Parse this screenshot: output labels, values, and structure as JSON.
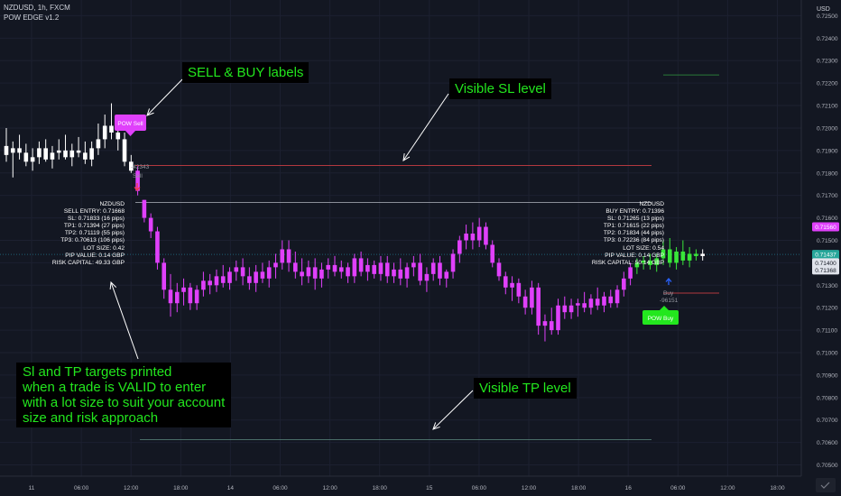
{
  "header": {
    "symbol_line": "NZDUSD, 1h, FXCM",
    "indicator": "POW EDGE v1.2"
  },
  "price_axis": {
    "currency": "USD",
    "ticks": [
      "0.72500",
      "0.72400",
      "0.72300",
      "0.72200",
      "0.72100",
      "0.72000",
      "0.71900",
      "0.71800",
      "0.71700",
      "0.71600",
      "0.71500",
      "0.71400",
      "0.71300",
      "0.71200",
      "0.71100",
      "0.71000",
      "0.70900",
      "0.70800",
      "0.70700",
      "0.70600",
      "0.70500"
    ],
    "badges": [
      {
        "text": "0.71560",
        "value": 0.7156,
        "bg": "#e040fb",
        "fg": "#ffffff"
      },
      {
        "text": "0.71437",
        "value": 0.71437,
        "bg": "#26a69a",
        "fg": "#ffffff"
      },
      {
        "text": "0.71400",
        "value": 0.714,
        "bg": "#e0e3eb",
        "fg": "#131722"
      },
      {
        "text": "0.71368",
        "value": 0.71368,
        "bg": "#e0e3eb",
        "fg": "#131722"
      }
    ]
  },
  "time_axis": {
    "ticks": [
      "11",
      "06:00",
      "12:00",
      "18:00",
      "14",
      "06:00",
      "12:00",
      "18:00",
      "15",
      "06:00",
      "12:00",
      "18:00",
      "16",
      "06:00",
      "12:00",
      "18:00"
    ]
  },
  "annotations": {
    "sell_buy": "SELL & BUY labels",
    "sl": "Visible SL level",
    "tp": "Visible TP level",
    "targets": "Sl and TP targets printed\nwhen a trade is VALID to enter\nwith a lot size to suit your account\nsize and risk approach"
  },
  "sell_info": [
    "NZDUSD",
    "SELL ENTRY: 0.71668",
    "SL: 0.71833 (16 pips)",
    "TP1: 0.71394 (27 pips)",
    "TP2: 0.71119 (55 pips)",
    "TP3: 0.70613 (106 pips)",
    "LOT SIZE: 0.42",
    "PIP VALUE: 0.14 GBP",
    "RISK CAPITAL: 49.33 GBP"
  ],
  "buy_info": [
    "NZDUSD",
    "BUY ENTRY: 0.71396",
    "SL: 0.71265 (13 pips)",
    "TP1: 0.71615 (22 pips)",
    "TP2: 0.71834 (44 pips)",
    "TP3: 0.72236 (84 pips)",
    "LOT SIZE: 0.54",
    "PIP VALUE: 0.14 GBP",
    "RISK CAPITAL: 50.14 GBP"
  ],
  "signals": {
    "sell_label": "POW Sell",
    "buy_label": "POW Buy",
    "sell_tag_id": "-42343",
    "sell_tag": "Sell",
    "buy_tag": "Buy",
    "buy_tag_id": "-96151"
  },
  "colors": {
    "background": "#131722",
    "bear_candle": "#e040fb",
    "neutral_candle": "#ffffff",
    "bull_candle": "#39e639",
    "annotation_text": "#23e71e",
    "sl_line": "#b2383f"
  },
  "chart_data": {
    "type": "candlestick",
    "ylim": [
      0.7045,
      0.7257
    ],
    "levels": [
      {
        "name": "sell_sl",
        "value": 0.71833
      },
      {
        "name": "sell_entry",
        "value": 0.71668
      },
      {
        "name": "sell_tp3",
        "value": 0.70613
      },
      {
        "name": "buy_sl",
        "value": 0.71265
      },
      {
        "name": "buy_tp3",
        "value": 0.72236
      },
      {
        "name": "last_price",
        "value": 0.71437
      }
    ],
    "candles": [
      {
        "o": 0.7192,
        "h": 0.72,
        "l": 0.7185,
        "c": 0.7188,
        "k": "w"
      },
      {
        "o": 0.7189,
        "h": 0.7194,
        "l": 0.7178,
        "c": 0.7191,
        "k": "w"
      },
      {
        "o": 0.7191,
        "h": 0.7197,
        "l": 0.7186,
        "c": 0.7189,
        "k": "w"
      },
      {
        "o": 0.7189,
        "h": 0.7193,
        "l": 0.7183,
        "c": 0.7185,
        "k": "w"
      },
      {
        "o": 0.7185,
        "h": 0.7191,
        "l": 0.7181,
        "c": 0.7187,
        "k": "w"
      },
      {
        "o": 0.7187,
        "h": 0.7194,
        "l": 0.7184,
        "c": 0.7191,
        "k": "w"
      },
      {
        "o": 0.7191,
        "h": 0.7195,
        "l": 0.7185,
        "c": 0.7186,
        "k": "w"
      },
      {
        "o": 0.7186,
        "h": 0.7192,
        "l": 0.7182,
        "c": 0.7189,
        "k": "w"
      },
      {
        "o": 0.7189,
        "h": 0.7195,
        "l": 0.7186,
        "c": 0.719,
        "k": "w"
      },
      {
        "o": 0.719,
        "h": 0.7197,
        "l": 0.7186,
        "c": 0.7187,
        "k": "w"
      },
      {
        "o": 0.7187,
        "h": 0.7193,
        "l": 0.7183,
        "c": 0.719,
        "k": "w"
      },
      {
        "o": 0.719,
        "h": 0.7196,
        "l": 0.7187,
        "c": 0.7189,
        "k": "w"
      },
      {
        "o": 0.7189,
        "h": 0.7194,
        "l": 0.7184,
        "c": 0.7186,
        "k": "w"
      },
      {
        "o": 0.7186,
        "h": 0.7194,
        "l": 0.7183,
        "c": 0.7191,
        "k": "w"
      },
      {
        "o": 0.7191,
        "h": 0.7202,
        "l": 0.7188,
        "c": 0.7195,
        "k": "w"
      },
      {
        "o": 0.7195,
        "h": 0.7206,
        "l": 0.7191,
        "c": 0.7201,
        "k": "w"
      },
      {
        "o": 0.7201,
        "h": 0.7211,
        "l": 0.7195,
        "c": 0.7198,
        "k": "w"
      },
      {
        "o": 0.7198,
        "h": 0.7201,
        "l": 0.719,
        "c": 0.7195,
        "k": "w"
      },
      {
        "o": 0.7195,
        "h": 0.7198,
        "l": 0.7183,
        "c": 0.7185,
        "k": "w"
      },
      {
        "o": 0.7185,
        "h": 0.7188,
        "l": 0.718,
        "c": 0.7181,
        "k": "w"
      },
      {
        "o": 0.7181,
        "h": 0.7183,
        "l": 0.717,
        "c": 0.7172,
        "k": "p"
      },
      {
        "o": 0.7168,
        "h": 0.7168,
        "l": 0.7158,
        "c": 0.716,
        "k": "p"
      },
      {
        "o": 0.716,
        "h": 0.7162,
        "l": 0.7151,
        "c": 0.7154,
        "k": "p"
      },
      {
        "o": 0.7154,
        "h": 0.7156,
        "l": 0.7137,
        "c": 0.714,
        "k": "p"
      },
      {
        "o": 0.714,
        "h": 0.7142,
        "l": 0.7124,
        "c": 0.7128,
        "k": "p"
      },
      {
        "o": 0.7128,
        "h": 0.7135,
        "l": 0.7116,
        "c": 0.7122,
        "k": "p"
      },
      {
        "o": 0.7122,
        "h": 0.7131,
        "l": 0.7118,
        "c": 0.7127,
        "k": "p"
      },
      {
        "o": 0.7127,
        "h": 0.7133,
        "l": 0.7121,
        "c": 0.7129,
        "k": "p"
      },
      {
        "o": 0.7129,
        "h": 0.7131,
        "l": 0.7119,
        "c": 0.7122,
        "k": "p"
      },
      {
        "o": 0.7122,
        "h": 0.713,
        "l": 0.7119,
        "c": 0.7128,
        "k": "p"
      },
      {
        "o": 0.7128,
        "h": 0.7136,
        "l": 0.7125,
        "c": 0.7132,
        "k": "p"
      },
      {
        "o": 0.7132,
        "h": 0.7135,
        "l": 0.7126,
        "c": 0.713,
        "k": "p"
      },
      {
        "o": 0.713,
        "h": 0.7137,
        "l": 0.7127,
        "c": 0.7134,
        "k": "p"
      },
      {
        "o": 0.7134,
        "h": 0.7139,
        "l": 0.7129,
        "c": 0.7131,
        "k": "p"
      },
      {
        "o": 0.7131,
        "h": 0.7138,
        "l": 0.7128,
        "c": 0.7136,
        "k": "p"
      },
      {
        "o": 0.7136,
        "h": 0.7141,
        "l": 0.7132,
        "c": 0.7138,
        "k": "p"
      },
      {
        "o": 0.7138,
        "h": 0.7142,
        "l": 0.713,
        "c": 0.7134,
        "k": "p"
      },
      {
        "o": 0.7134,
        "h": 0.7138,
        "l": 0.7128,
        "c": 0.7131,
        "k": "p"
      },
      {
        "o": 0.7131,
        "h": 0.7139,
        "l": 0.7127,
        "c": 0.7136,
        "k": "p"
      },
      {
        "o": 0.7136,
        "h": 0.714,
        "l": 0.7131,
        "c": 0.7133,
        "k": "p"
      },
      {
        "o": 0.7133,
        "h": 0.7141,
        "l": 0.7129,
        "c": 0.7138,
        "k": "p"
      },
      {
        "o": 0.7138,
        "h": 0.7144,
        "l": 0.7133,
        "c": 0.714,
        "k": "p"
      },
      {
        "o": 0.714,
        "h": 0.715,
        "l": 0.7137,
        "c": 0.7146,
        "k": "p"
      },
      {
        "o": 0.7146,
        "h": 0.715,
        "l": 0.7136,
        "c": 0.714,
        "k": "p"
      },
      {
        "o": 0.714,
        "h": 0.7145,
        "l": 0.7133,
        "c": 0.7136,
        "k": "p"
      },
      {
        "o": 0.7136,
        "h": 0.7142,
        "l": 0.713,
        "c": 0.7134,
        "k": "p"
      },
      {
        "o": 0.7134,
        "h": 0.7141,
        "l": 0.7131,
        "c": 0.7138,
        "k": "p"
      },
      {
        "o": 0.7138,
        "h": 0.7142,
        "l": 0.7128,
        "c": 0.7133,
        "k": "p"
      },
      {
        "o": 0.7133,
        "h": 0.714,
        "l": 0.7129,
        "c": 0.7137,
        "k": "p"
      },
      {
        "o": 0.7137,
        "h": 0.7142,
        "l": 0.7133,
        "c": 0.7139,
        "k": "p"
      },
      {
        "o": 0.7139,
        "h": 0.7143,
        "l": 0.7134,
        "c": 0.7136,
        "k": "p"
      },
      {
        "o": 0.7136,
        "h": 0.7141,
        "l": 0.7133,
        "c": 0.7138,
        "k": "p"
      },
      {
        "o": 0.7138,
        "h": 0.714,
        "l": 0.7131,
        "c": 0.7134,
        "k": "p"
      },
      {
        "o": 0.7134,
        "h": 0.7144,
        "l": 0.7131,
        "c": 0.7142,
        "k": "p"
      },
      {
        "o": 0.7142,
        "h": 0.7145,
        "l": 0.7134,
        "c": 0.7136,
        "k": "p"
      },
      {
        "o": 0.7136,
        "h": 0.7142,
        "l": 0.7132,
        "c": 0.7139,
        "k": "p"
      },
      {
        "o": 0.7139,
        "h": 0.7141,
        "l": 0.7133,
        "c": 0.7135,
        "k": "p"
      },
      {
        "o": 0.7135,
        "h": 0.7143,
        "l": 0.7132,
        "c": 0.714,
        "k": "p"
      },
      {
        "o": 0.714,
        "h": 0.7143,
        "l": 0.7131,
        "c": 0.7134,
        "k": "p"
      },
      {
        "o": 0.7134,
        "h": 0.714,
        "l": 0.7131,
        "c": 0.7137,
        "k": "p"
      },
      {
        "o": 0.7137,
        "h": 0.7142,
        "l": 0.713,
        "c": 0.7133,
        "k": "p"
      },
      {
        "o": 0.7133,
        "h": 0.714,
        "l": 0.7129,
        "c": 0.7138,
        "k": "p"
      },
      {
        "o": 0.7138,
        "h": 0.7143,
        "l": 0.7134,
        "c": 0.714,
        "k": "p"
      },
      {
        "o": 0.714,
        "h": 0.7144,
        "l": 0.713,
        "c": 0.7132,
        "k": "p"
      },
      {
        "o": 0.7132,
        "h": 0.7138,
        "l": 0.7127,
        "c": 0.7135,
        "k": "p"
      },
      {
        "o": 0.7135,
        "h": 0.7142,
        "l": 0.7132,
        "c": 0.714,
        "k": "p"
      },
      {
        "o": 0.714,
        "h": 0.7143,
        "l": 0.713,
        "c": 0.7133,
        "k": "p"
      },
      {
        "o": 0.7133,
        "h": 0.7137,
        "l": 0.7129,
        "c": 0.7136,
        "k": "p"
      },
      {
        "o": 0.7136,
        "h": 0.7146,
        "l": 0.7133,
        "c": 0.7144,
        "k": "p"
      },
      {
        "o": 0.7144,
        "h": 0.7152,
        "l": 0.714,
        "c": 0.715,
        "k": "p"
      },
      {
        "o": 0.715,
        "h": 0.7157,
        "l": 0.7146,
        "c": 0.7153,
        "k": "p"
      },
      {
        "o": 0.7153,
        "h": 0.7158,
        "l": 0.7146,
        "c": 0.715,
        "k": "p"
      },
      {
        "o": 0.715,
        "h": 0.716,
        "l": 0.7147,
        "c": 0.7156,
        "k": "p"
      },
      {
        "o": 0.7156,
        "h": 0.7158,
        "l": 0.7146,
        "c": 0.7148,
        "k": "p"
      },
      {
        "o": 0.7148,
        "h": 0.715,
        "l": 0.7138,
        "c": 0.714,
        "k": "p"
      },
      {
        "o": 0.714,
        "h": 0.7142,
        "l": 0.7132,
        "c": 0.7134,
        "k": "p"
      },
      {
        "o": 0.7134,
        "h": 0.7136,
        "l": 0.7126,
        "c": 0.7129,
        "k": "p"
      },
      {
        "o": 0.7129,
        "h": 0.7134,
        "l": 0.7123,
        "c": 0.7131,
        "k": "p"
      },
      {
        "o": 0.7131,
        "h": 0.7133,
        "l": 0.7122,
        "c": 0.7125,
        "k": "p"
      },
      {
        "o": 0.7125,
        "h": 0.7128,
        "l": 0.7117,
        "c": 0.712,
        "k": "p"
      },
      {
        "o": 0.712,
        "h": 0.7132,
        "l": 0.7117,
        "c": 0.7129,
        "k": "p"
      },
      {
        "o": 0.7129,
        "h": 0.7131,
        "l": 0.7108,
        "c": 0.7112,
        "k": "p"
      },
      {
        "o": 0.7112,
        "h": 0.7117,
        "l": 0.7105,
        "c": 0.7114,
        "k": "p"
      },
      {
        "o": 0.7114,
        "h": 0.712,
        "l": 0.7108,
        "c": 0.711,
        "k": "p"
      },
      {
        "o": 0.711,
        "h": 0.7124,
        "l": 0.7108,
        "c": 0.7121,
        "k": "p"
      },
      {
        "o": 0.7121,
        "h": 0.7125,
        "l": 0.7115,
        "c": 0.7118,
        "k": "p"
      },
      {
        "o": 0.7118,
        "h": 0.7124,
        "l": 0.7115,
        "c": 0.7121,
        "k": "p"
      },
      {
        "o": 0.7121,
        "h": 0.7124,
        "l": 0.7116,
        "c": 0.7122,
        "k": "p"
      },
      {
        "o": 0.7122,
        "h": 0.7127,
        "l": 0.7118,
        "c": 0.712,
        "k": "p"
      },
      {
        "o": 0.712,
        "h": 0.7126,
        "l": 0.7117,
        "c": 0.7124,
        "k": "p"
      },
      {
        "o": 0.7124,
        "h": 0.7129,
        "l": 0.7119,
        "c": 0.7121,
        "k": "p"
      },
      {
        "o": 0.7121,
        "h": 0.7127,
        "l": 0.7118,
        "c": 0.7125,
        "k": "p"
      },
      {
        "o": 0.7125,
        "h": 0.7128,
        "l": 0.712,
        "c": 0.7122,
        "k": "p"
      },
      {
        "o": 0.7122,
        "h": 0.713,
        "l": 0.712,
        "c": 0.7128,
        "k": "p"
      },
      {
        "o": 0.7128,
        "h": 0.7136,
        "l": 0.7125,
        "c": 0.7133,
        "k": "p"
      },
      {
        "o": 0.7133,
        "h": 0.714,
        "l": 0.713,
        "c": 0.7138,
        "k": "p"
      },
      {
        "o": 0.7138,
        "h": 0.7142,
        "l": 0.7135,
        "c": 0.714,
        "k": "g"
      },
      {
        "o": 0.714,
        "h": 0.7143,
        "l": 0.7137,
        "c": 0.7141,
        "k": "g"
      },
      {
        "o": 0.7141,
        "h": 0.7144,
        "l": 0.7137,
        "c": 0.7139,
        "k": "g"
      },
      {
        "o": 0.7139,
        "h": 0.7144,
        "l": 0.7136,
        "c": 0.7142,
        "k": "g"
      },
      {
        "o": 0.7142,
        "h": 0.715,
        "l": 0.7139,
        "c": 0.7146,
        "k": "g"
      },
      {
        "o": 0.7146,
        "h": 0.7151,
        "l": 0.7138,
        "c": 0.714,
        "k": "g"
      },
      {
        "o": 0.714,
        "h": 0.7147,
        "l": 0.7137,
        "c": 0.7145,
        "k": "g"
      },
      {
        "o": 0.7145,
        "h": 0.715,
        "l": 0.7139,
        "c": 0.7141,
        "k": "g"
      },
      {
        "o": 0.7141,
        "h": 0.7147,
        "l": 0.7138,
        "c": 0.7144,
        "k": "g"
      },
      {
        "o": 0.7144,
        "h": 0.7146,
        "l": 0.7141,
        "c": 0.7143,
        "k": "g"
      },
      {
        "o": 0.7143,
        "h": 0.7146,
        "l": 0.7141,
        "c": 0.7144,
        "k": "w"
      }
    ]
  }
}
